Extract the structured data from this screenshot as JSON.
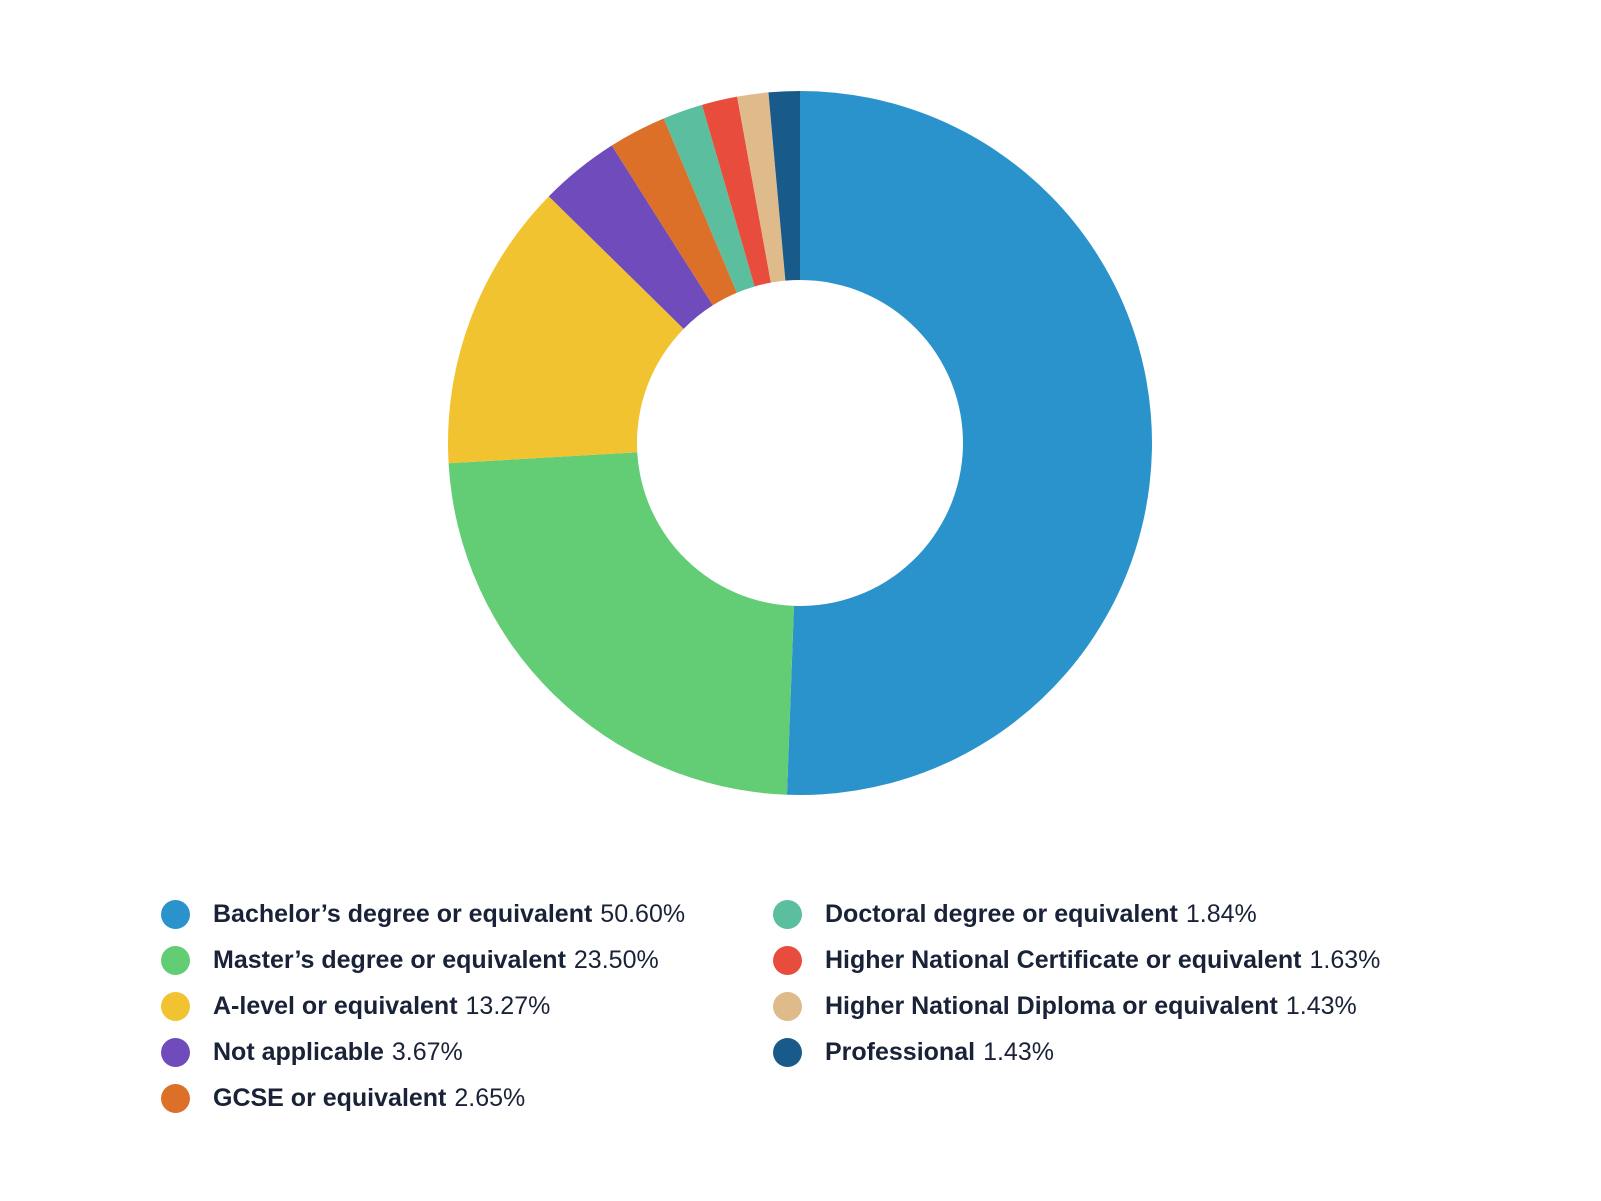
{
  "chart_data": {
    "type": "pie",
    "donut": true,
    "legend_position": "bottom",
    "slices": [
      {
        "label": "Bachelor’s degree or equivalent",
        "value": 50.6,
        "value_text": "50.60%",
        "color": "#2b93cc"
      },
      {
        "label": "Master’s degree or equivalent",
        "value": 23.5,
        "value_text": "23.50%",
        "color": "#62cd74"
      },
      {
        "label": "A-level or equivalent",
        "value": 13.27,
        "value_text": "13.27%",
        "color": "#f1c330"
      },
      {
        "label": "Not applicable",
        "value": 3.67,
        "value_text": "3.67%",
        "color": "#6f4bbb"
      },
      {
        "label": "GCSE or equivalent",
        "value": 2.65,
        "value_text": "2.65%",
        "color": "#dc7029"
      },
      {
        "label": "Doctoral degree or equivalent",
        "value": 1.84,
        "value_text": "1.84%",
        "color": "#5bbe9f"
      },
      {
        "label": "Higher National Certificate or equivalent",
        "value": 1.63,
        "value_text": "1.63%",
        "color": "#e84c3d"
      },
      {
        "label": "Higher National Diploma or equivalent",
        "value": 1.43,
        "value_text": "1.43%",
        "color": "#dfba8b"
      },
      {
        "label": "Professional",
        "value": 1.43,
        "value_text": "1.43%",
        "color": "#185b8a"
      }
    ]
  }
}
